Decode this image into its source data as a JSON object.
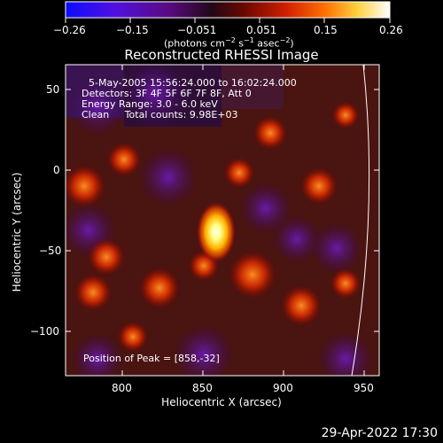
{
  "colorbar": {
    "tick_labels": [
      "−0.26",
      "−0.15",
      "−0.051",
      "0.051",
      "0.15",
      "0.26"
    ],
    "units_prefix": "(photons cm",
    "units_exp1": "−2",
    "units_mid": " s",
    "units_exp2": "−1",
    "units_mid2": " asec",
    "units_exp3": "−2",
    "units_suffix": ")",
    "colors": [
      "#1a1aff",
      "#6a00c8",
      "#3a0a48",
      "#2a0a14",
      "#b01000",
      "#ff5000",
      "#ffd040",
      "#ffffff"
    ]
  },
  "title": "Reconstructed RHESSI Image",
  "info": {
    "line1": "5-May-2005 15:56:24.000 to 16:02:24.000",
    "line2": "Detectors: 3F 4F 5F 6F 7F 8F, Att 0",
    "line3": "Energy Range: 3.0 - 6.0 keV",
    "line4": "Clean     Total counts: 9.98E+03",
    "peak": "Position of Peak = [858,-32]"
  },
  "x_axis": {
    "label": "Heliocentric X (arcsec)",
    "ticks": [
      800,
      850,
      900,
      950
    ],
    "tick_labels": [
      "800",
      "850",
      "900",
      "950"
    ],
    "range": [
      764,
      958
    ]
  },
  "y_axis": {
    "label": "Heliocentric Y (arcsec)",
    "ticks": [
      50,
      0,
      -50,
      -100
    ],
    "tick_labels": [
      "50",
      "0",
      "−50",
      "−100"
    ],
    "range": [
      -127,
      66
    ]
  },
  "date_stamp": "29-Apr-2022 17:30"
}
